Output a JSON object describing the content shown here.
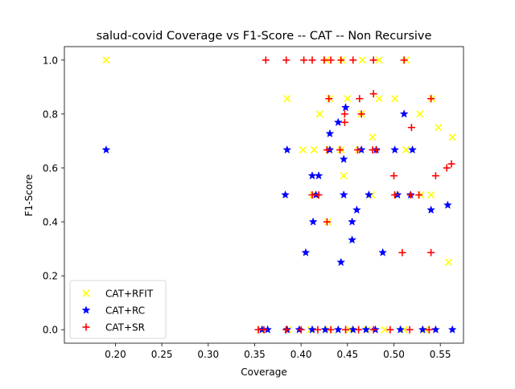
{
  "chart_data": {
    "type": "scatter",
    "title": "salud-covid Coverage vs F1-Score -- CAT -- Non Recursive",
    "xlabel": "Coverage",
    "ylabel": "F1-Score",
    "xlim": [
      0.145,
      0.575
    ],
    "ylim": [
      -0.05,
      1.05
    ],
    "xticks": [
      "0.20",
      "0.25",
      "0.30",
      "0.35",
      "0.40",
      "0.45",
      "0.50",
      "0.55"
    ],
    "yticks": [
      "0.0",
      "0.2",
      "0.4",
      "0.6",
      "0.8",
      "1.0"
    ],
    "grid": false,
    "legend_position": "lower-left",
    "series": [
      {
        "name": "CAT+RFIT",
        "color": "#ffff00",
        "marker": "x-icon",
        "points": [
          [
            0.19,
            1.0
          ],
          [
            0.427,
            1.0
          ],
          [
            0.444,
            1.0
          ],
          [
            0.466,
            1.0
          ],
          [
            0.484,
            1.0
          ],
          [
            0.513,
            1.0
          ],
          [
            0.385,
            0.857
          ],
          [
            0.431,
            0.857
          ],
          [
            0.45,
            0.857
          ],
          [
            0.484,
            0.857
          ],
          [
            0.501,
            0.857
          ],
          [
            0.541,
            0.857
          ],
          [
            0.42,
            0.8
          ],
          [
            0.465,
            0.8
          ],
          [
            0.528,
            0.8
          ],
          [
            0.477,
            0.714
          ],
          [
            0.563,
            0.714
          ],
          [
            0.402,
            0.667
          ],
          [
            0.414,
            0.667
          ],
          [
            0.43,
            0.667
          ],
          [
            0.443,
            0.667
          ],
          [
            0.462,
            0.667
          ],
          [
            0.513,
            0.667
          ],
          [
            0.548,
            0.75
          ],
          [
            0.446,
            0.571
          ],
          [
            0.413,
            0.5
          ],
          [
            0.476,
            0.5
          ],
          [
            0.503,
            0.5
          ],
          [
            0.529,
            0.5
          ],
          [
            0.54,
            0.5
          ],
          [
            0.429,
            0.4
          ],
          [
            0.559,
            0.25
          ],
          [
            0.356,
            0.0
          ],
          [
            0.386,
            0.0
          ],
          [
            0.41,
            0.0
          ],
          [
            0.43,
            0.0
          ],
          [
            0.452,
            0.0
          ],
          [
            0.471,
            0.0
          ],
          [
            0.49,
            0.0
          ],
          [
            0.511,
            0.0
          ],
          [
            0.534,
            0.0
          ]
        ]
      },
      {
        "name": "CAT+RC",
        "color": "#0000ff",
        "marker": "star-icon",
        "points": [
          [
            0.19,
            0.667
          ],
          [
            0.448,
            0.824
          ],
          [
            0.511,
            0.8
          ],
          [
            0.44,
            0.769
          ],
          [
            0.431,
            0.727
          ],
          [
            0.446,
            0.632
          ],
          [
            0.385,
            0.667
          ],
          [
            0.431,
            0.667
          ],
          [
            0.465,
            0.667
          ],
          [
            0.481,
            0.667
          ],
          [
            0.501,
            0.667
          ],
          [
            0.52,
            0.667
          ],
          [
            0.412,
            0.571
          ],
          [
            0.419,
            0.571
          ],
          [
            0.383,
            0.5
          ],
          [
            0.416,
            0.5
          ],
          [
            0.446,
            0.5
          ],
          [
            0.473,
            0.5
          ],
          [
            0.504,
            0.5
          ],
          [
            0.518,
            0.5
          ],
          [
            0.558,
            0.462
          ],
          [
            0.46,
            0.444
          ],
          [
            0.54,
            0.444
          ],
          [
            0.413,
            0.4
          ],
          [
            0.455,
            0.4
          ],
          [
            0.455,
            0.333
          ],
          [
            0.405,
            0.286
          ],
          [
            0.488,
            0.286
          ],
          [
            0.443,
            0.25
          ],
          [
            0.358,
            0.0
          ],
          [
            0.364,
            0.0
          ],
          [
            0.385,
            0.0
          ],
          [
            0.398,
            0.0
          ],
          [
            0.412,
            0.0
          ],
          [
            0.426,
            0.0
          ],
          [
            0.44,
            0.0
          ],
          [
            0.456,
            0.0
          ],
          [
            0.47,
            0.0
          ],
          [
            0.48,
            0.0
          ],
          [
            0.507,
            0.0
          ],
          [
            0.531,
            0.0
          ],
          [
            0.545,
            0.0
          ],
          [
            0.563,
            0.0
          ]
        ]
      },
      {
        "name": "CAT+SR",
        "color": "#ff0000",
        "marker": "plus-icon",
        "points": [
          [
            0.362,
            1.0
          ],
          [
            0.384,
            1.0
          ],
          [
            0.403,
            1.0
          ],
          [
            0.412,
            1.0
          ],
          [
            0.425,
            1.0
          ],
          [
            0.432,
            1.0
          ],
          [
            0.443,
            1.0
          ],
          [
            0.456,
            1.0
          ],
          [
            0.478,
            1.0
          ],
          [
            0.511,
            1.0
          ],
          [
            0.478,
            0.875
          ],
          [
            0.43,
            0.857
          ],
          [
            0.463,
            0.857
          ],
          [
            0.54,
            0.857
          ],
          [
            0.447,
            0.8
          ],
          [
            0.465,
            0.8
          ],
          [
            0.447,
            0.769
          ],
          [
            0.519,
            0.75
          ],
          [
            0.428,
            0.667
          ],
          [
            0.442,
            0.667
          ],
          [
            0.461,
            0.667
          ],
          [
            0.477,
            0.667
          ],
          [
            0.481,
            0.667
          ],
          [
            0.562,
            0.615
          ],
          [
            0.557,
            0.6
          ],
          [
            0.545,
            0.571
          ],
          [
            0.5,
            0.571
          ],
          [
            0.412,
            0.5
          ],
          [
            0.419,
            0.5
          ],
          [
            0.501,
            0.5
          ],
          [
            0.518,
            0.5
          ],
          [
            0.527,
            0.5
          ],
          [
            0.428,
            0.4
          ],
          [
            0.509,
            0.286
          ],
          [
            0.54,
            0.286
          ],
          [
            0.354,
            0.0
          ],
          [
            0.36,
            0.0
          ],
          [
            0.384,
            0.0
          ],
          [
            0.4,
            0.0
          ],
          [
            0.418,
            0.0
          ],
          [
            0.432,
            0.0
          ],
          [
            0.448,
            0.0
          ],
          [
            0.462,
            0.0
          ],
          [
            0.478,
            0.0
          ],
          [
            0.496,
            0.0
          ],
          [
            0.517,
            0.0
          ],
          [
            0.538,
            0.0
          ]
        ]
      }
    ]
  }
}
